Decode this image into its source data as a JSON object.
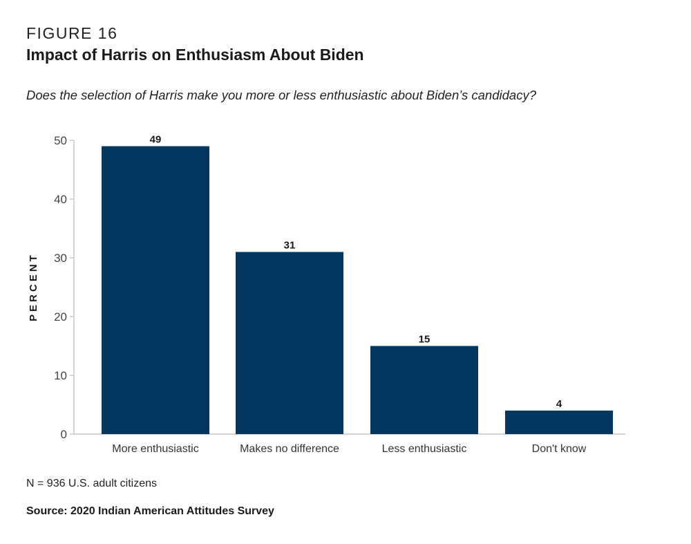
{
  "figure_label": "FIGURE 16",
  "title": "Impact of Harris on Enthusiasm About Biden",
  "subtitle": "Does the selection of Harris make you more or less enthusiastic about Biden’s candidacy?",
  "note": "N = 936 U.S. adult citizens",
  "source": "Source: 2020 Indian American Attitudes Survey",
  "colors": {
    "bar": "#03375F",
    "axis": "#bbbbbb"
  },
  "chart_data": {
    "type": "bar",
    "title": "Impact of Harris on Enthusiasm About Biden",
    "xlabel": "",
    "ylabel": "PERCENT",
    "categories": [
      "More enthusiastic",
      "Makes no difference",
      "Less enthusiastic",
      "Don't know"
    ],
    "values": [
      49,
      31,
      15,
      4
    ],
    "data_labels": [
      "49",
      "31",
      "15",
      "4"
    ],
    "ylim": [
      0,
      50
    ],
    "yticks": [
      0,
      10,
      20,
      30,
      40,
      50
    ],
    "grid": false,
    "legend": "none"
  }
}
